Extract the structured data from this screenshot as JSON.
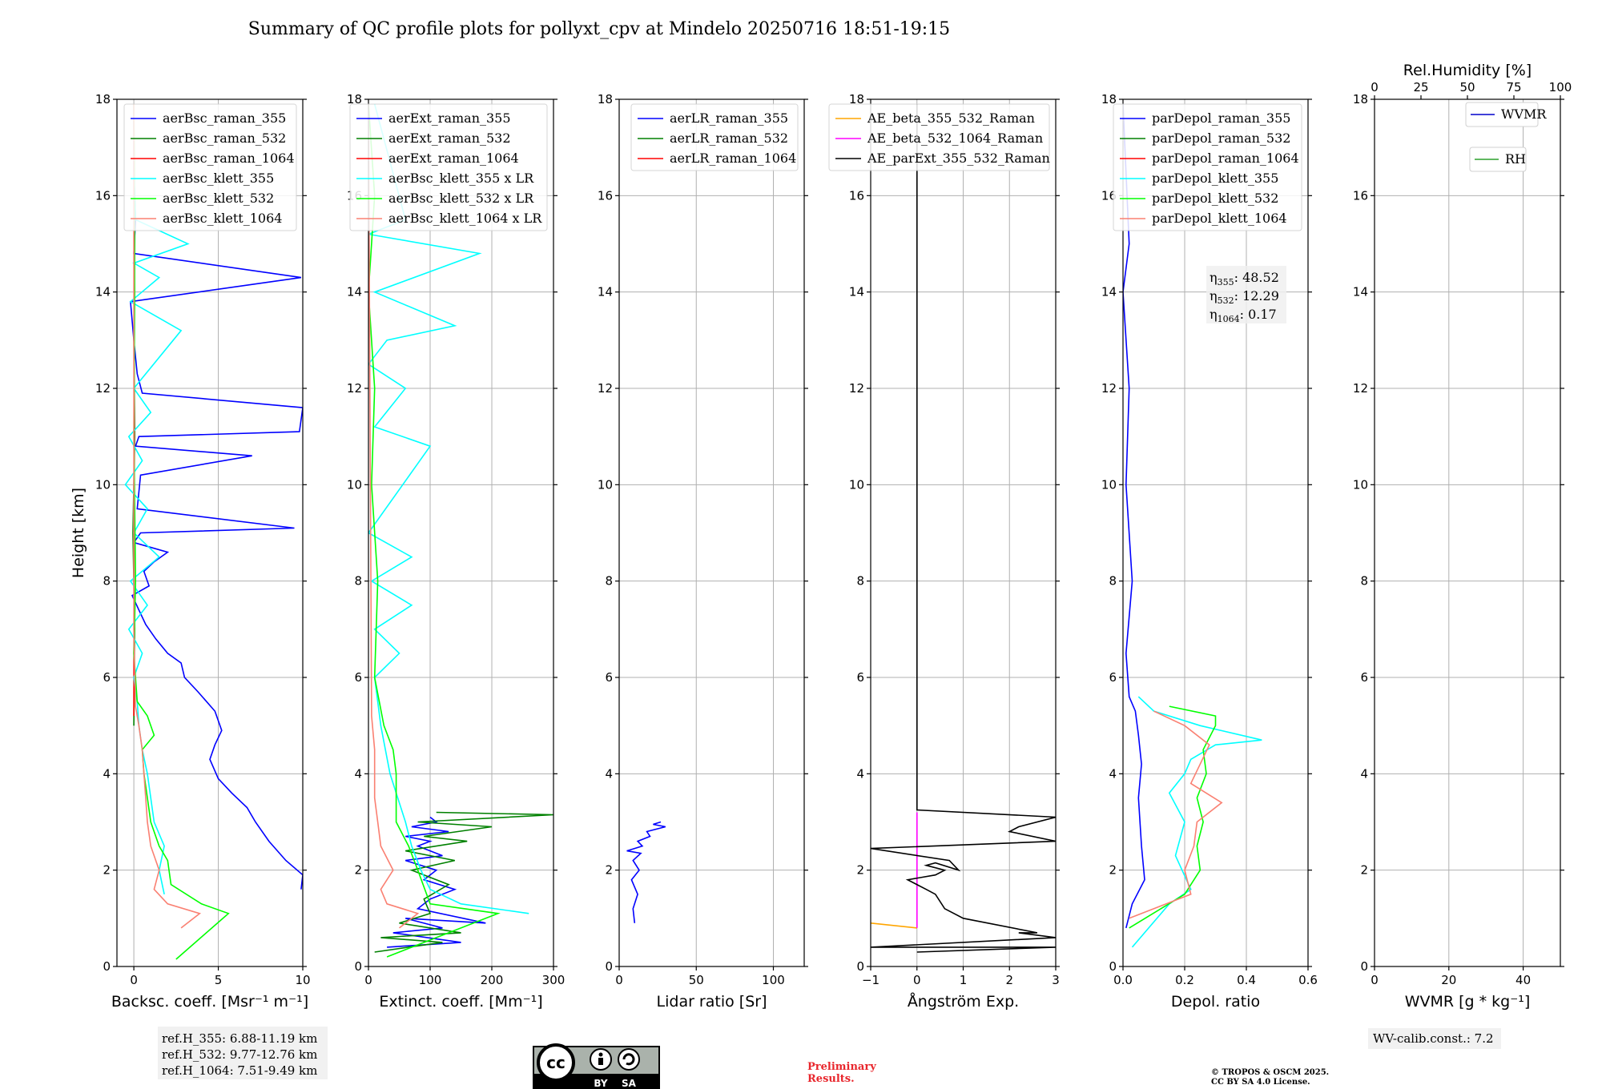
{
  "title": "Summary of QC profile plots for pollyxt_cpv at Mindelo 20250716 18:51-19:15",
  "colors": {
    "blue": "#0000ff",
    "green": "#008000",
    "red": "#ff0000",
    "cyan": "#00ffff",
    "lime": "#00ff00",
    "salmon": "#fa8072",
    "orange": "#ffa500",
    "magenta": "#ff00ff",
    "black": "#000000",
    "whvmr": "#0000cc",
    "rh": "#2ca02c"
  },
  "chart_data": [
    {
      "type": "line",
      "id": "bsc",
      "xlabel": "Backsc. coeff. [Msr⁻¹ m⁻¹]",
      "ylabel": "Height [km]",
      "xlim": [
        -1,
        10
      ],
      "ylim": [
        0,
        18
      ],
      "xticks": [
        "0",
        "5",
        "10"
      ],
      "xtick_values": [
        0,
        5,
        10
      ],
      "yticks": [
        "0",
        "2",
        "4",
        "6",
        "8",
        "10",
        "12",
        "14",
        "16",
        "18"
      ],
      "grid": true,
      "legend": "top-right",
      "series": [
        {
          "name": "aerBsc_raman_355",
          "color": "blue",
          "x": [
            9.9,
            10.0,
            9.0,
            8.0,
            7.2,
            6.7,
            5.8,
            5.0,
            4.5,
            4.8,
            5.2,
            4.8,
            3.8,
            3.0,
            2.8,
            2.0,
            1.3,
            0.7,
            0.3,
            -0.1,
            0.9,
            0.6,
            1.2,
            2.0,
            0.0,
            0.4,
            9.5,
            0.2,
            0.4,
            7.0,
            0.1,
            0.3,
            9.8,
            10.0,
            0.5,
            0.2,
            0.0,
            -0.2,
            9.9,
            0.0,
            0.1,
            0.0,
            0.0
          ],
          "y": [
            1.6,
            1.9,
            2.2,
            2.6,
            3.0,
            3.3,
            3.6,
            3.9,
            4.3,
            4.6,
            4.9,
            5.3,
            5.7,
            6.0,
            6.3,
            6.5,
            6.8,
            7.1,
            7.4,
            7.7,
            7.9,
            8.2,
            8.4,
            8.6,
            8.8,
            9.0,
            9.1,
            9.5,
            10.2,
            10.6,
            10.8,
            11.0,
            11.1,
            11.6,
            11.9,
            12.3,
            13.0,
            13.8,
            14.3,
            14.8,
            15.5,
            16.5,
            17.9
          ]
        },
        {
          "name": "aerBsc_raman_532",
          "color": "green",
          "x": [
            0.0,
            0.05,
            -0.05,
            0.05,
            0.0,
            0.05,
            0.0
          ],
          "y": [
            5.0,
            7.0,
            9.0,
            11.0,
            13.0,
            15.0,
            17.9
          ]
        },
        {
          "name": "aerBsc_raman_1064",
          "color": "red",
          "x": [
            0.0,
            0.02,
            0.0
          ],
          "y": [
            5.2,
            10.0,
            17.9
          ]
        },
        {
          "name": "aerBsc_klett_355",
          "color": "cyan",
          "x": [
            1.8,
            1.5,
            1.8,
            1.2,
            1.0,
            0.8,
            0.5,
            0.3,
            0.2,
            0.0,
            0.5,
            -0.3,
            0.8,
            -0.2,
            1.5,
            0.0,
            0.8,
            -0.5,
            0.5,
            -0.3,
            1.0,
            0.0,
            2.8,
            -0.2,
            1.5,
            0.0,
            3.2,
            0.1,
            0.0,
            0.0
          ],
          "y": [
            1.5,
            2.0,
            2.5,
            3.0,
            3.5,
            4.0,
            4.5,
            5.0,
            5.5,
            6.0,
            6.5,
            7.0,
            7.5,
            8.0,
            8.5,
            9.0,
            9.5,
            10.0,
            10.5,
            11.0,
            11.5,
            12.0,
            13.2,
            13.8,
            14.3,
            14.6,
            15.0,
            15.5,
            16.5,
            17.9
          ]
        },
        {
          "name": "aerBsc_klett_532",
          "color": "lime",
          "x": [
            2.5,
            5.6,
            4.0,
            2.2,
            2.0,
            1.5,
            1.0,
            0.8,
            0.6,
            0.5,
            1.2,
            0.8,
            0.2,
            0.0,
            0.1,
            0.0,
            0.05,
            0.0
          ],
          "y": [
            0.15,
            1.1,
            1.3,
            1.7,
            2.2,
            2.5,
            3.0,
            3.5,
            4.0,
            4.5,
            4.8,
            5.2,
            5.5,
            6.5,
            8.0,
            11.0,
            14.0,
            17.9
          ]
        },
        {
          "name": "aerBsc_klett_1064",
          "color": "salmon",
          "x": [
            2.8,
            3.9,
            2.0,
            1.2,
            1.5,
            1.0,
            0.8,
            0.7,
            0.6,
            0.5,
            0.3,
            0.1,
            0.0,
            0.0
          ],
          "y": [
            0.8,
            1.1,
            1.3,
            1.6,
            2.0,
            2.5,
            3.0,
            3.5,
            4.0,
            4.5,
            5.0,
            5.4,
            7.0,
            17.9
          ]
        }
      ]
    },
    {
      "type": "line",
      "id": "ext",
      "xlabel": "Extinct. coeff. [Mm⁻¹]",
      "xlim": [
        0,
        300
      ],
      "ylim": [
        0,
        18
      ],
      "xticks": [
        "0",
        "100",
        "200",
        "300"
      ],
      "xtick_values": [
        0,
        100,
        200,
        300
      ],
      "yticks": [
        "0",
        "2",
        "4",
        "6",
        "8",
        "10",
        "12",
        "14",
        "16",
        "18"
      ],
      "grid": true,
      "legend": "top-right",
      "series": [
        {
          "name": "aerExt_raman_355",
          "color": "blue",
          "x": [
            30,
            150,
            40,
            120,
            60,
            190,
            80,
            100,
            140,
            90,
            110,
            60,
            120,
            80,
            100,
            60,
            130,
            70,
            110,
            100
          ],
          "y": [
            0.4,
            0.5,
            0.7,
            0.8,
            1.0,
            0.9,
            1.2,
            1.4,
            1.6,
            1.8,
            2.0,
            2.2,
            2.3,
            2.5,
            2.6,
            2.7,
            2.8,
            2.9,
            3.0,
            3.1
          ]
        },
        {
          "name": "aerExt_raman_532",
          "color": "green",
          "x": [
            10,
            120,
            20,
            150,
            50,
            100,
            90,
            130,
            70,
            140,
            60,
            160,
            90,
            200,
            80,
            300,
            110
          ],
          "y": [
            0.3,
            0.5,
            0.6,
            0.7,
            0.9,
            1.1,
            1.4,
            1.7,
            2.0,
            2.2,
            2.4,
            2.6,
            2.7,
            2.9,
            3.0,
            3.15,
            3.2
          ]
        },
        {
          "name": "aerExt_raman_1064",
          "color": "red",
          "x": [
            0,
            0
          ],
          "y": [
            3.2,
            3.2
          ]
        },
        {
          "name": "aerBsc_klett_355 x LR",
          "color": "cyan",
          "x": [
            260,
            150,
            100,
            85,
            70,
            60,
            35,
            20,
            10,
            50,
            10,
            70,
            5,
            70,
            0,
            100,
            10,
            60,
            0,
            30,
            140,
            10,
            180,
            0,
            60,
            10
          ],
          "y": [
            1.1,
            1.3,
            1.6,
            2.0,
            2.5,
            3.0,
            4.0,
            5.0,
            6.0,
            6.5,
            7.0,
            7.5,
            8.0,
            8.5,
            9.0,
            10.8,
            11.2,
            12.0,
            12.5,
            13.0,
            13.3,
            14.0,
            14.8,
            15.2,
            15.5,
            17.9
          ]
        },
        {
          "name": "aerBsc_klett_532 x LR",
          "color": "lime",
          "x": [
            30,
            210,
            100,
            80,
            65,
            45,
            45,
            40,
            25,
            10,
            15,
            5,
            10,
            0,
            10,
            0
          ],
          "y": [
            0.2,
            1.1,
            1.3,
            2.0,
            2.5,
            3.0,
            4.0,
            4.5,
            5.0,
            6.0,
            8.0,
            10.0,
            12.0,
            14.0,
            16.0,
            17.9
          ]
        },
        {
          "name": "aerBsc_klett_1064 x LR",
          "color": "salmon",
          "x": [
            50,
            80,
            30,
            20,
            40,
            20,
            15,
            10,
            10,
            5,
            0
          ],
          "y": [
            0.8,
            1.1,
            1.3,
            1.6,
            2.0,
            2.5,
            3.0,
            3.5,
            4.5,
            5.2,
            17.9
          ]
        }
      ]
    },
    {
      "type": "line",
      "id": "lr",
      "xlabel": "Lidar ratio [Sr]",
      "xlim": [
        0,
        120
      ],
      "ylim": [
        0,
        18
      ],
      "xticks": [
        "0",
        "50",
        "100"
      ],
      "xtick_values": [
        0,
        50,
        100
      ],
      "yticks": [
        "0",
        "2",
        "4",
        "6",
        "8",
        "10",
        "12",
        "14",
        "16",
        "18"
      ],
      "grid": true,
      "legend": "top-right",
      "series": [
        {
          "name": "aerLR_raman_355",
          "color": "blue",
          "x": [
            10,
            9,
            12,
            8,
            13,
            9,
            14,
            5,
            15,
            12,
            20,
            18,
            30,
            22,
            27
          ],
          "y": [
            0.9,
            1.2,
            1.5,
            1.8,
            2.0,
            2.2,
            2.35,
            2.4,
            2.5,
            2.6,
            2.7,
            2.8,
            2.9,
            2.95,
            3.0
          ]
        },
        {
          "name": "aerLR_raman_532",
          "color": "green",
          "x": [
            0,
            0
          ],
          "y": [
            3.0,
            3.0
          ]
        },
        {
          "name": "aerLR_raman_1064",
          "color": "red",
          "x": [
            0,
            0
          ],
          "y": [
            3.0,
            3.0
          ]
        }
      ]
    },
    {
      "type": "line",
      "id": "ae",
      "xlabel": "Ångström Exp.",
      "xlim": [
        -1,
        3
      ],
      "ylim": [
        0,
        18
      ],
      "xticks": [
        "−1",
        "0",
        "1",
        "2",
        "3"
      ],
      "xtick_values": [
        -1,
        0,
        1,
        2,
        3
      ],
      "yticks": [
        "0",
        "2",
        "4",
        "6",
        "8",
        "10",
        "12",
        "14",
        "16",
        "18"
      ],
      "grid": true,
      "legend": "top-right",
      "series": [
        {
          "name": "AE_beta_355_532_Raman",
          "color": "orange",
          "x": [
            0.0,
            -1.0
          ],
          "y": [
            0.8,
            0.9
          ]
        },
        {
          "name": "AE_beta_532_1064_Raman",
          "color": "magenta",
          "x": [
            0.0,
            0.0
          ],
          "y": [
            0.8,
            3.2
          ]
        },
        {
          "name": "AE_parExt_355_532_Raman",
          "color": "black",
          "x": [
            0.0,
            3.0,
            -1.0,
            3.0,
            2.2,
            2.6,
            1.0,
            0.6,
            0.4,
            0.2,
            -0.2,
            0.4,
            0.6,
            0.2,
            0.4,
            0.9,
            0.7,
            -1.0,
            3.0,
            2.0,
            2.2,
            3.0,
            0.0,
            0.0
          ],
          "y": [
            0.3,
            0.4,
            0.4,
            0.6,
            0.7,
            0.7,
            1.0,
            1.2,
            1.5,
            1.6,
            1.8,
            1.9,
            2.0,
            2.1,
            2.15,
            2.0,
            2.2,
            2.45,
            2.6,
            2.8,
            2.9,
            3.1,
            3.25,
            17.9
          ]
        }
      ]
    },
    {
      "type": "line",
      "id": "dep",
      "xlabel": "Depol. ratio",
      "xlim": [
        0,
        0.6
      ],
      "ylim": [
        0,
        18
      ],
      "xticks": [
        "0.0",
        "0.2",
        "0.4",
        "0.6"
      ],
      "xtick_values": [
        0,
        0.2,
        0.4,
        0.6
      ],
      "yticks": [
        "0",
        "2",
        "4",
        "6",
        "8",
        "10",
        "12",
        "14",
        "16",
        "18"
      ],
      "grid": true,
      "legend": "top-right",
      "series": [
        {
          "name": "parDepol_raman_355",
          "color": "blue",
          "x": [
            0.01,
            0.03,
            0.07,
            0.06,
            0.05,
            0.06,
            0.05,
            0.04,
            0.02,
            0.01,
            0.03,
            0.01,
            0.02,
            0.0,
            0.02,
            0.0
          ],
          "y": [
            0.8,
            1.3,
            1.8,
            2.5,
            3.5,
            4.2,
            4.8,
            5.3,
            5.6,
            6.5,
            8.0,
            10.0,
            12.0,
            14.0,
            15.0,
            17.9
          ]
        },
        {
          "name": "parDepol_raman_532",
          "color": "green",
          "x": [
            0,
            0
          ],
          "y": [
            5.0,
            5.0
          ]
        },
        {
          "name": "parDepol_raman_1064",
          "color": "red",
          "x": [
            0,
            0
          ],
          "y": [
            5.0,
            5.0
          ]
        },
        {
          "name": "parDepol_klett_355",
          "color": "cyan",
          "x": [
            0.03,
            0.15,
            0.22,
            0.17,
            0.2,
            0.15,
            0.2,
            0.22,
            0.3,
            0.45,
            0.25,
            0.1,
            0.05
          ],
          "y": [
            0.4,
            1.3,
            1.6,
            2.3,
            3.0,
            3.6,
            4.0,
            4.3,
            4.6,
            4.7,
            5.0,
            5.3,
            5.6
          ]
        },
        {
          "name": "parDepol_klett_532",
          "color": "lime",
          "x": [
            0.02,
            0.2,
            0.25,
            0.24,
            0.26,
            0.24,
            0.27,
            0.26,
            0.3,
            0.3,
            0.15
          ],
          "y": [
            0.8,
            1.5,
            2.0,
            2.5,
            3.0,
            3.5,
            4.0,
            4.5,
            5.0,
            5.2,
            5.4
          ]
        },
        {
          "name": "parDepol_klett_1064",
          "color": "salmon",
          "x": [
            0.02,
            0.22,
            0.2,
            0.23,
            0.24,
            0.32,
            0.22,
            0.25,
            0.28,
            0.2,
            0.1
          ],
          "y": [
            1.0,
            1.5,
            2.0,
            2.5,
            3.0,
            3.4,
            3.8,
            4.2,
            4.6,
            5.0,
            5.3
          ]
        }
      ]
    },
    {
      "type": "line",
      "id": "wv",
      "xlabel": "WVMR [g * kg⁻¹]",
      "toplabel": "Rel.Humidity [%]",
      "xlim": [
        0,
        50
      ],
      "ylim": [
        0,
        18
      ],
      "xticks": [
        "0",
        "20",
        "40"
      ],
      "xtick_values": [
        0,
        20,
        40
      ],
      "topticks": [
        "0",
        "25",
        "50",
        "75",
        "100"
      ],
      "yticks": [
        "0",
        "2",
        "4",
        "6",
        "8",
        "10",
        "12",
        "14",
        "16",
        "18"
      ],
      "grid": true,
      "legend": "top-right",
      "series": [
        {
          "name": "WVMR",
          "color": "whvmr",
          "x": [
            0,
            0
          ],
          "y": [
            0,
            0
          ]
        },
        {
          "name": "RH",
          "color": "rh",
          "x": [
            0,
            0
          ],
          "y": [
            0,
            0
          ]
        }
      ]
    }
  ],
  "annotations": {
    "eta_355": "η355: 48.52",
    "eta_355_label": "η",
    "eta_355_sub": "355",
    "eta_355_val": ": 48.52",
    "eta_532_label": "η",
    "eta_532_sub": "532",
    "eta_532_val": ": 12.29",
    "eta_1064_label": "η",
    "eta_1064_sub": "1064",
    "eta_1064_val": ": 0.17",
    "refh_355": "ref.H_355: 6.88-11.19 km",
    "refh_532": "ref.H_532: 9.77-12.76 km",
    "refh_1064": "ref.H_1064: 7.51-9.49 km",
    "wv_calib": "WV-calib.const.: 7.2",
    "preliminary_1": "Preliminary",
    "preliminary_2": "Results.",
    "copyright_1": "© TROPOS & OSCM 2025.",
    "copyright_2": "CC BY SA 4.0 License.",
    "cc_by": "BY",
    "cc_sa": "SA",
    "cc_logo": "cc"
  }
}
